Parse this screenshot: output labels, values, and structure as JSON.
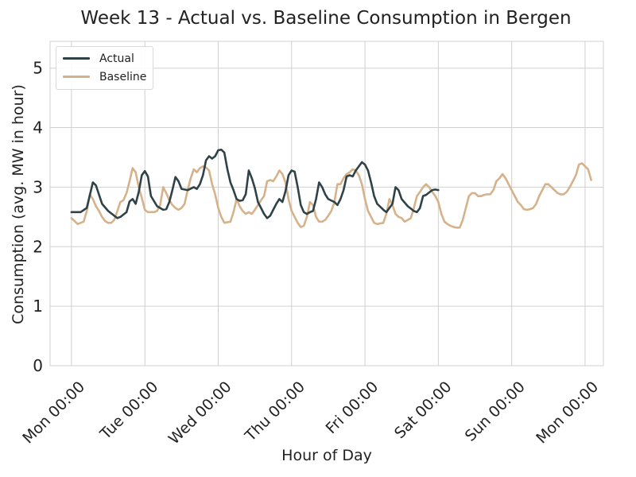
{
  "chart_data": {
    "type": "line",
    "title": "Week 13 - Actual vs. Baseline Consumption in Bergen",
    "xlabel": "Hour of Day",
    "ylabel": "Consumption (avg. MW in hour)",
    "ylim": [
      0,
      5.45
    ],
    "yticks": [
      0,
      1,
      2,
      3,
      4,
      5
    ],
    "xlim": [
      -7,
      174
    ],
    "xticks": [
      {
        "hour": 0,
        "label": "Mon 00:00"
      },
      {
        "hour": 24,
        "label": "Tue 00:00"
      },
      {
        "hour": 48,
        "label": "Wed 00:00"
      },
      {
        "hour": 72,
        "label": "Thu 00:00"
      },
      {
        "hour": 96,
        "label": "Fri 00:00"
      },
      {
        "hour": 120,
        "label": "Sat 00:00"
      },
      {
        "hour": 144,
        "label": "Sun 00:00"
      },
      {
        "hour": 168,
        "label": "Mon 00:00"
      }
    ],
    "grid": true,
    "legend_position": "top-left",
    "series": [
      {
        "name": "Actual",
        "color": "#2f4247",
        "points": [
          [
            0,
            2.58
          ],
          [
            3,
            2.58
          ],
          [
            5,
            2.65
          ],
          [
            7,
            3.08
          ],
          [
            8,
            3.03
          ],
          [
            10,
            2.72
          ],
          [
            12,
            2.6
          ],
          [
            14,
            2.52
          ],
          [
            15,
            2.48
          ],
          [
            16,
            2.5
          ],
          [
            18,
            2.58
          ],
          [
            19,
            2.76
          ],
          [
            20,
            2.8
          ],
          [
            21,
            2.72
          ],
          [
            22,
            2.92
          ],
          [
            23,
            3.2
          ],
          [
            24,
            3.27
          ],
          [
            25,
            3.18
          ],
          [
            26,
            2.85
          ],
          [
            28,
            2.68
          ],
          [
            30,
            2.62
          ],
          [
            31,
            2.63
          ],
          [
            32,
            2.75
          ],
          [
            33,
            2.95
          ],
          [
            34,
            3.17
          ],
          [
            35,
            3.1
          ],
          [
            36,
            2.97
          ],
          [
            38,
            2.95
          ],
          [
            40,
            3.0
          ],
          [
            41,
            2.97
          ],
          [
            42,
            3.05
          ],
          [
            43,
            3.2
          ],
          [
            44,
            3.45
          ],
          [
            45,
            3.52
          ],
          [
            46,
            3.48
          ],
          [
            47,
            3.52
          ],
          [
            48,
            3.62
          ],
          [
            49,
            3.63
          ],
          [
            50,
            3.58
          ],
          [
            51,
            3.3
          ],
          [
            52,
            3.08
          ],
          [
            53,
            2.95
          ],
          [
            54,
            2.8
          ],
          [
            55,
            2.77
          ],
          [
            56,
            2.78
          ],
          [
            57,
            2.88
          ],
          [
            58,
            3.28
          ],
          [
            59,
            3.15
          ],
          [
            60,
            2.98
          ],
          [
            61,
            2.75
          ],
          [
            62,
            2.65
          ],
          [
            63,
            2.55
          ],
          [
            64,
            2.48
          ],
          [
            65,
            2.52
          ],
          [
            66,
            2.62
          ],
          [
            67,
            2.72
          ],
          [
            68,
            2.8
          ],
          [
            69,
            2.75
          ],
          [
            70,
            2.93
          ],
          [
            71,
            3.2
          ],
          [
            72,
            3.28
          ],
          [
            73,
            3.26
          ],
          [
            74,
            3.0
          ],
          [
            75,
            2.7
          ],
          [
            76,
            2.58
          ],
          [
            77,
            2.55
          ],
          [
            78,
            2.58
          ],
          [
            79,
            2.6
          ],
          [
            80,
            2.8
          ],
          [
            81,
            3.08
          ],
          [
            82,
            3.0
          ],
          [
            83,
            2.88
          ],
          [
            84,
            2.8
          ],
          [
            86,
            2.75
          ],
          [
            87,
            2.7
          ],
          [
            88,
            2.8
          ],
          [
            89,
            2.95
          ],
          [
            90,
            3.18
          ],
          [
            91,
            3.2
          ],
          [
            92,
            3.18
          ],
          [
            93,
            3.28
          ],
          [
            94,
            3.35
          ],
          [
            95,
            3.42
          ],
          [
            96,
            3.38
          ],
          [
            97,
            3.28
          ],
          [
            98,
            3.08
          ],
          [
            99,
            2.85
          ],
          [
            100,
            2.72
          ],
          [
            102,
            2.62
          ],
          [
            103,
            2.58
          ],
          [
            104,
            2.65
          ],
          [
            105,
            2.72
          ],
          [
            106,
            3.0
          ],
          [
            107,
            2.95
          ],
          [
            108,
            2.8
          ],
          [
            110,
            2.68
          ],
          [
            112,
            2.6
          ],
          [
            113,
            2.58
          ],
          [
            114,
            2.65
          ],
          [
            115,
            2.85
          ],
          [
            116,
            2.87
          ],
          [
            118,
            2.95
          ],
          [
            119,
            2.96
          ],
          [
            120,
            2.95
          ]
        ]
      },
      {
        "name": "Baseline",
        "color": "#d6b28a",
        "points": [
          [
            0,
            2.48
          ],
          [
            2,
            2.38
          ],
          [
            4,
            2.42
          ],
          [
            5,
            2.6
          ],
          [
            6,
            2.88
          ],
          [
            7,
            2.8
          ],
          [
            8,
            2.68
          ],
          [
            9,
            2.6
          ],
          [
            10,
            2.5
          ],
          [
            11,
            2.43
          ],
          [
            12,
            2.4
          ],
          [
            13,
            2.4
          ],
          [
            14,
            2.45
          ],
          [
            15,
            2.6
          ],
          [
            16,
            2.75
          ],
          [
            17,
            2.78
          ],
          [
            18,
            2.9
          ],
          [
            19,
            3.1
          ],
          [
            20,
            3.32
          ],
          [
            21,
            3.25
          ],
          [
            22,
            3.0
          ],
          [
            23,
            2.82
          ],
          [
            24,
            2.62
          ],
          [
            25,
            2.58
          ],
          [
            27,
            2.58
          ],
          [
            28,
            2.6
          ],
          [
            29,
            2.7
          ],
          [
            30,
            3.0
          ],
          [
            31,
            2.9
          ],
          [
            32,
            2.78
          ],
          [
            33,
            2.7
          ],
          [
            34,
            2.65
          ],
          [
            35,
            2.62
          ],
          [
            36,
            2.65
          ],
          [
            37,
            2.72
          ],
          [
            38,
            2.95
          ],
          [
            39,
            3.15
          ],
          [
            40,
            3.3
          ],
          [
            41,
            3.25
          ],
          [
            42,
            3.32
          ],
          [
            43,
            3.35
          ],
          [
            44,
            3.33
          ],
          [
            45,
            3.28
          ],
          [
            46,
            3.05
          ],
          [
            47,
            2.88
          ],
          [
            48,
            2.65
          ],
          [
            49,
            2.5
          ],
          [
            50,
            2.4
          ],
          [
            52,
            2.42
          ],
          [
            53,
            2.58
          ],
          [
            54,
            2.8
          ],
          [
            55,
            2.68
          ],
          [
            56,
            2.6
          ],
          [
            57,
            2.55
          ],
          [
            58,
            2.58
          ],
          [
            59,
            2.55
          ],
          [
            60,
            2.62
          ],
          [
            61,
            2.7
          ],
          [
            62,
            2.78
          ],
          [
            63,
            2.85
          ],
          [
            64,
            3.1
          ],
          [
            65,
            3.12
          ],
          [
            66,
            3.1
          ],
          [
            67,
            3.18
          ],
          [
            68,
            3.28
          ],
          [
            69,
            3.22
          ],
          [
            70,
            3.08
          ],
          [
            71,
            2.8
          ],
          [
            72,
            2.6
          ],
          [
            73,
            2.5
          ],
          [
            74,
            2.4
          ],
          [
            75,
            2.33
          ],
          [
            76,
            2.35
          ],
          [
            77,
            2.5
          ],
          [
            78,
            2.75
          ],
          [
            79,
            2.7
          ],
          [
            80,
            2.5
          ],
          [
            81,
            2.42
          ],
          [
            82,
            2.42
          ],
          [
            83,
            2.45
          ],
          [
            84,
            2.52
          ],
          [
            85,
            2.6
          ],
          [
            86,
            2.75
          ],
          [
            87,
            3.05
          ],
          [
            88,
            3.05
          ],
          [
            89,
            3.15
          ],
          [
            90,
            3.22
          ],
          [
            91,
            3.25
          ],
          [
            92,
            3.3
          ],
          [
            93,
            3.28
          ],
          [
            94,
            3.2
          ],
          [
            95,
            3.05
          ],
          [
            96,
            2.8
          ],
          [
            97,
            2.6
          ],
          [
            98,
            2.5
          ],
          [
            99,
            2.4
          ],
          [
            100,
            2.38
          ],
          [
            102,
            2.4
          ],
          [
            103,
            2.55
          ],
          [
            104,
            2.8
          ],
          [
            105,
            2.7
          ],
          [
            106,
            2.55
          ],
          [
            107,
            2.5
          ],
          [
            108,
            2.48
          ],
          [
            109,
            2.42
          ],
          [
            110,
            2.45
          ],
          [
            111,
            2.48
          ],
          [
            112,
            2.65
          ],
          [
            113,
            2.85
          ],
          [
            114,
            2.92
          ],
          [
            115,
            3.0
          ],
          [
            116,
            3.05
          ],
          [
            117,
            3.0
          ],
          [
            118,
            2.92
          ],
          [
            119,
            2.85
          ],
          [
            120,
            2.75
          ],
          [
            121,
            2.55
          ],
          [
            122,
            2.42
          ],
          [
            123,
            2.38
          ],
          [
            124,
            2.35
          ],
          [
            125,
            2.33
          ],
          [
            126,
            2.32
          ],
          [
            127,
            2.32
          ],
          [
            128,
            2.45
          ],
          [
            129,
            2.65
          ],
          [
            130,
            2.85
          ],
          [
            131,
            2.9
          ],
          [
            132,
            2.9
          ],
          [
            133,
            2.85
          ],
          [
            134,
            2.85
          ],
          [
            135,
            2.87
          ],
          [
            136,
            2.88
          ],
          [
            137,
            2.88
          ],
          [
            138,
            2.95
          ],
          [
            139,
            3.1
          ],
          [
            140,
            3.15
          ],
          [
            141,
            3.22
          ],
          [
            142,
            3.15
          ],
          [
            143,
            3.05
          ],
          [
            144,
            2.95
          ],
          [
            145,
            2.85
          ],
          [
            146,
            2.75
          ],
          [
            147,
            2.7
          ],
          [
            148,
            2.63
          ],
          [
            149,
            2.62
          ],
          [
            150,
            2.63
          ],
          [
            151,
            2.65
          ],
          [
            152,
            2.72
          ],
          [
            153,
            2.85
          ],
          [
            154,
            2.95
          ],
          [
            155,
            3.05
          ],
          [
            156,
            3.05
          ],
          [
            157,
            3.0
          ],
          [
            158,
            2.95
          ],
          [
            159,
            2.9
          ],
          [
            160,
            2.88
          ],
          [
            161,
            2.88
          ],
          [
            162,
            2.92
          ],
          [
            163,
            3.0
          ],
          [
            164,
            3.1
          ],
          [
            165,
            3.2
          ],
          [
            166,
            3.38
          ],
          [
            167,
            3.4
          ],
          [
            168,
            3.35
          ],
          [
            169,
            3.3
          ],
          [
            170,
            3.12
          ]
        ]
      }
    ]
  }
}
